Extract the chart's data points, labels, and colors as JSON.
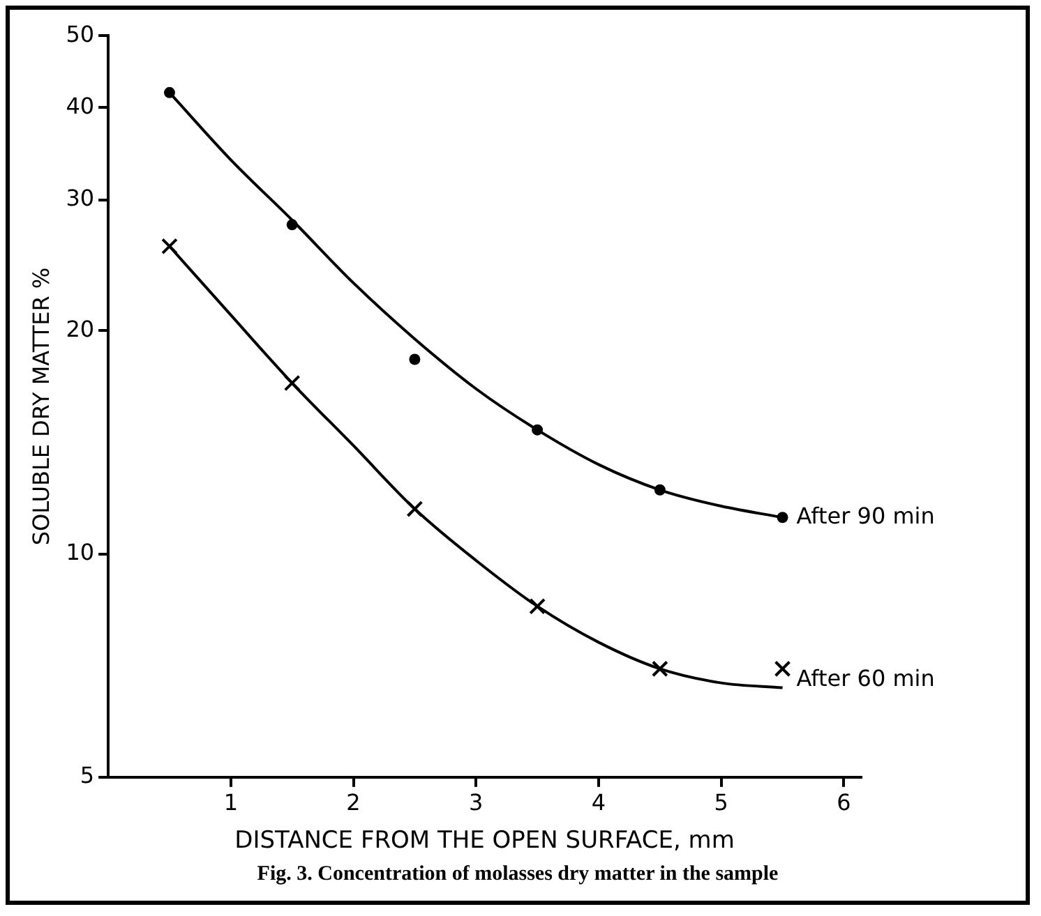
{
  "chart_data": {
    "type": "scatter",
    "xlabel": "DISTANCE FROM THE OPEN SURFACE, mm",
    "ylabel": "SOLUBLE DRY MATTER %",
    "log": "y",
    "grid": false,
    "legend": false,
    "xlim": [
      0,
      6.14
    ],
    "xticks": [
      1,
      2,
      3,
      4,
      5,
      6
    ],
    "ylim": [
      5,
      50
    ],
    "yticks": [
      5,
      10,
      20,
      30,
      40,
      50
    ],
    "series": [
      {
        "name": "After 90 min",
        "type": "scatter",
        "marker": "circle",
        "color": "#000000",
        "x": [
          0.5,
          1.5,
          2.5,
          3.5,
          4.5,
          5.5
        ],
        "values": [
          41.9,
          27.8,
          18.3,
          14.7,
          12.2,
          11.2
        ]
      },
      {
        "name": "After 60 min",
        "type": "scatter",
        "marker": "cross",
        "color": "#000000",
        "x": [
          0.5,
          1.5,
          2.5,
          3.5,
          4.5,
          5.5
        ],
        "values": [
          26.0,
          17.0,
          11.5,
          8.5,
          7.0,
          7.0
        ]
      },
      {
        "type": "line",
        "marker": "none",
        "line_style": "solid",
        "color": "#000000",
        "x": [
          0.5,
          1,
          1.5,
          2,
          2.5,
          3,
          3.5,
          4,
          4.5,
          5,
          5.5
        ],
        "values": [
          41.9,
          34,
          28.2,
          23.2,
          19.5,
          16.7,
          14.7,
          13.2,
          12.2,
          11.6,
          11.2
        ]
      },
      {
        "type": "line",
        "marker": "none",
        "line_style": "solid",
        "color": "#000000",
        "x": [
          0.5,
          1,
          1.5,
          2,
          2.5,
          3,
          3.5,
          4,
          4.5,
          5,
          5.5
        ],
        "values": [
          26.0,
          21,
          17.0,
          14.0,
          11.5,
          9.8,
          8.5,
          7.6,
          7.0,
          6.7,
          6.6
        ]
      }
    ],
    "annotations": [
      "Fig. 3. Concentration of molasses dry matter in the sample"
    ]
  }
}
